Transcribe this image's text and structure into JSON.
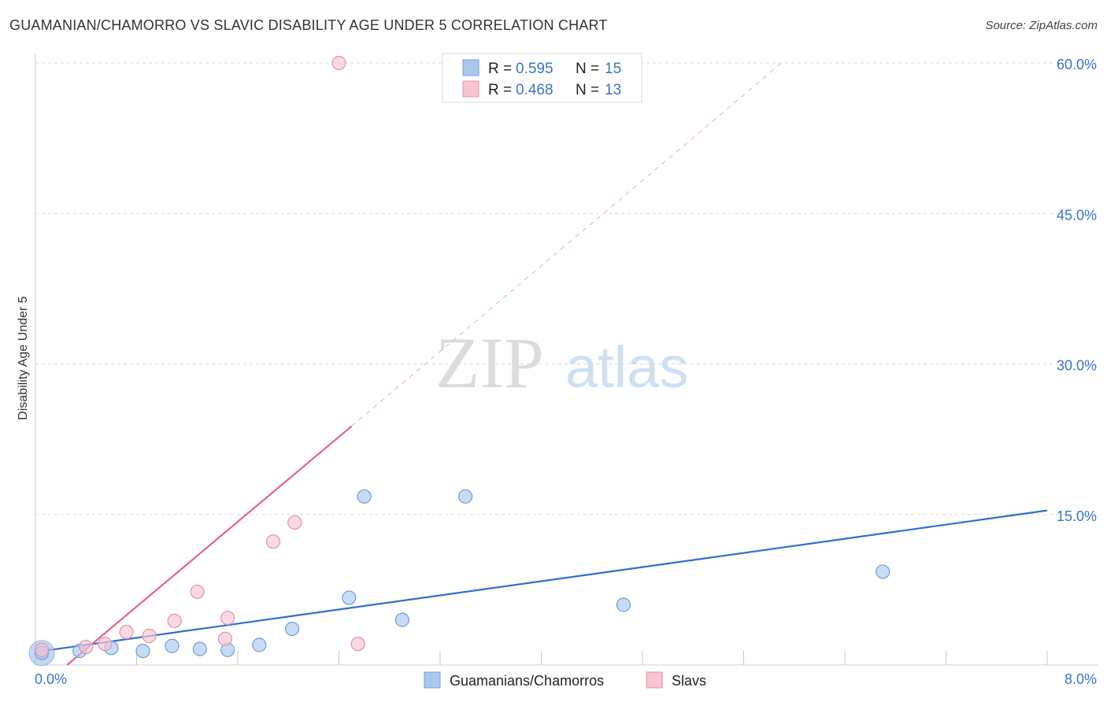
{
  "title": "GUAMANIAN/CHAMORRO VS SLAVIC DISABILITY AGE UNDER 5 CORRELATION CHART",
  "source": "Source: ZipAtlas.com",
  "watermark": {
    "zip": "ZIP",
    "atlas": "atlas"
  },
  "legend": {
    "r_label": "R =",
    "n_label": "N =",
    "rows": [
      {
        "r": "0.595",
        "n": "15",
        "color": "#a9c8f0",
        "border": "#6f9fd8"
      },
      {
        "r": "0.468",
        "n": "13",
        "color": "#f8c4d2",
        "border": "#e592ab"
      }
    ]
  },
  "chart_data": {
    "type": "scatter",
    "title": "GUAMANIAN/CHAMORRO VS SLAVIC DISABILITY AGE UNDER 5 CORRELATION CHART",
    "xlabel": "",
    "ylabel": "Disability Age Under 5",
    "xlim": [
      0,
      8
    ],
    "ylim": [
      0,
      60
    ],
    "x_tick_labels": [
      "0.0%",
      "8.0%"
    ],
    "y_ticks": [
      15,
      30,
      45,
      60
    ],
    "y_tick_labels": [
      "15.0%",
      "30.0%",
      "45.0%",
      "60.0%"
    ],
    "grid": true,
    "series": [
      {
        "name": "Guamanians/Chamorros",
        "color": "#a9c8f0",
        "stroke": "#6f9fd8",
        "line_color": "#2f6fd0",
        "points": [
          [
            0.05,
            1.2
          ],
          [
            0.35,
            1.4
          ],
          [
            0.6,
            1.7
          ],
          [
            0.85,
            1.4
          ],
          [
            1.08,
            1.9
          ],
          [
            1.3,
            1.6
          ],
          [
            1.52,
            1.5
          ],
          [
            1.77,
            2.0
          ],
          [
            2.03,
            3.6
          ],
          [
            2.48,
            6.7
          ],
          [
            2.6,
            16.8
          ],
          [
            2.9,
            4.5
          ],
          [
            3.4,
            16.8
          ],
          [
            4.65,
            6.0
          ],
          [
            6.7,
            9.3
          ]
        ],
        "trend": [
          [
            0.0,
            1.3
          ],
          [
            8.0,
            15.4
          ]
        ],
        "trend_dashed": null
      },
      {
        "name": "Slavs",
        "color": "#f8c4d2",
        "stroke": "#e592ab",
        "line_color": "#e8628a",
        "points": [
          [
            0.05,
            1.5
          ],
          [
            0.4,
            1.8
          ],
          [
            0.55,
            2.1
          ],
          [
            0.72,
            3.3
          ],
          [
            0.9,
            2.9
          ],
          [
            1.1,
            4.4
          ],
          [
            1.28,
            7.3
          ],
          [
            1.5,
            2.6
          ],
          [
            1.52,
            4.7
          ],
          [
            1.88,
            12.3
          ],
          [
            2.05,
            14.2
          ],
          [
            2.55,
            2.1
          ],
          [
            2.4,
            60.0
          ]
        ],
        "trend": [
          [
            0.25,
            0.0
          ],
          [
            2.5,
            23.8
          ]
        ],
        "trend_dashed": [
          [
            2.5,
            23.8
          ],
          [
            5.9,
            60.0
          ]
        ]
      }
    ],
    "legend_position": "bottom-center"
  }
}
